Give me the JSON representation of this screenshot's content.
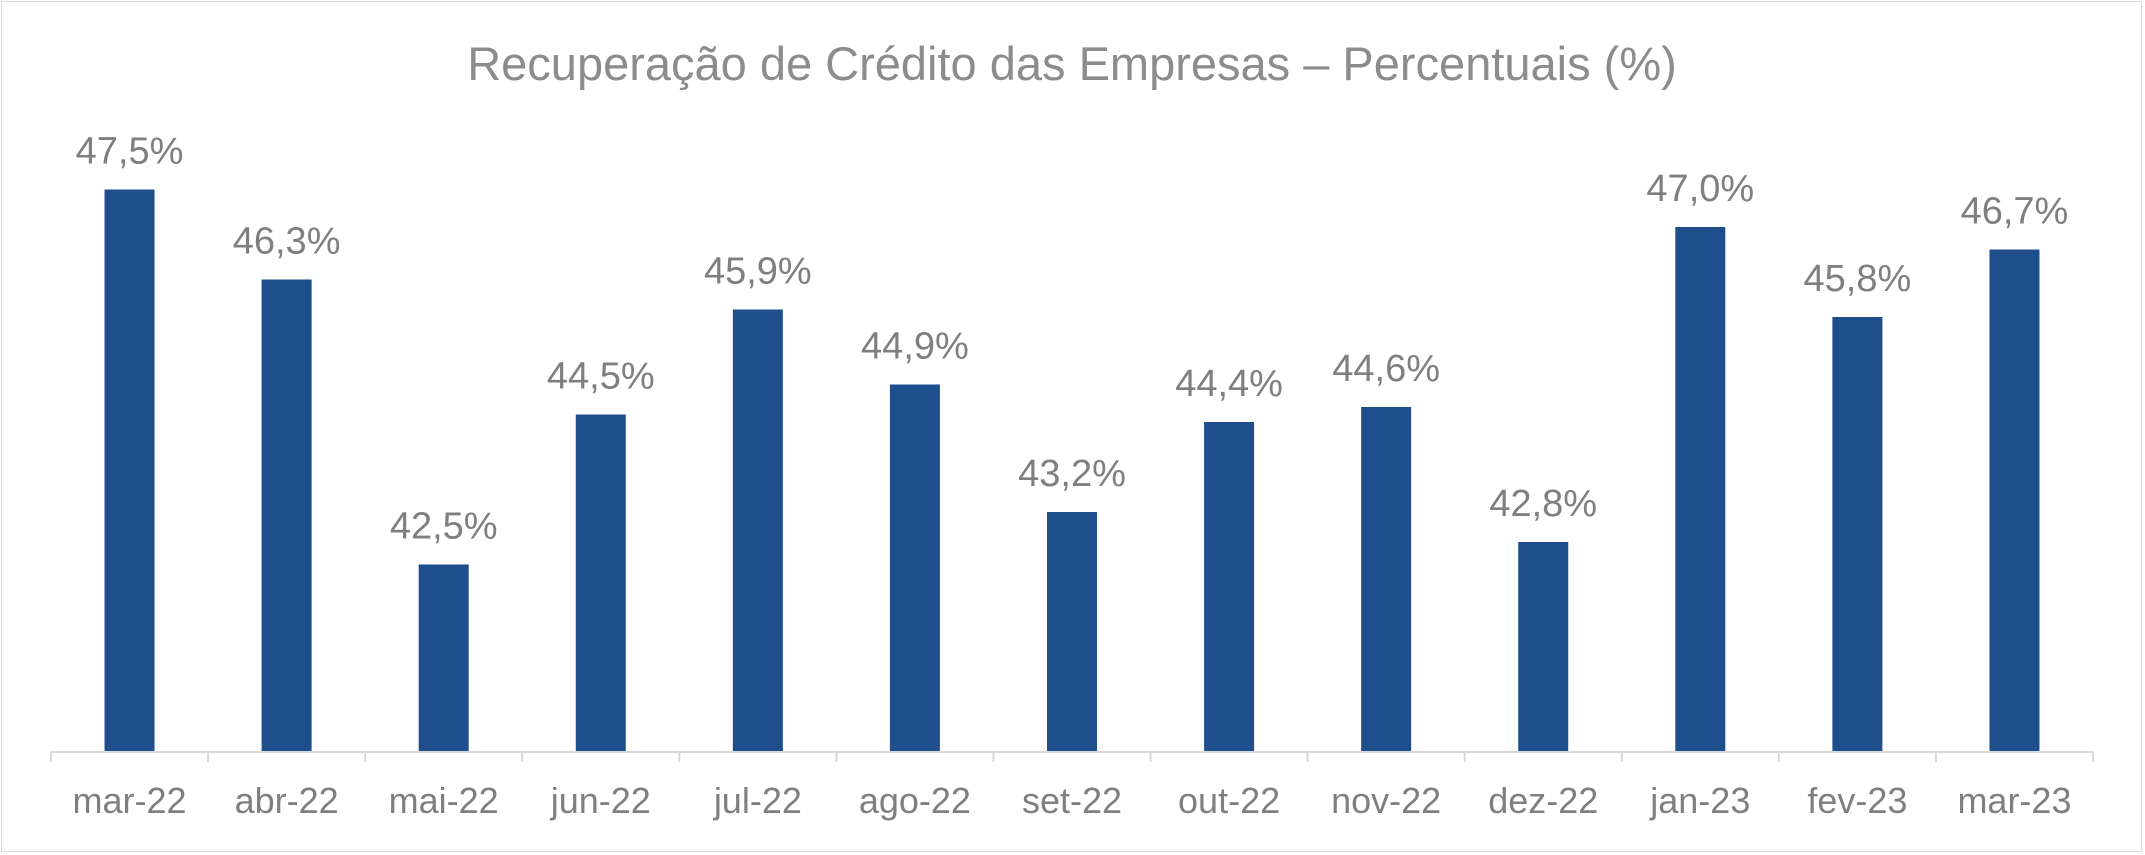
{
  "chart_data": {
    "type": "bar",
    "title": "Recuperação de Crédito das Empresas – Percentuais (%)",
    "xlabel": "",
    "ylabel": "",
    "categories": [
      "mar-22",
      "abr-22",
      "mai-22",
      "jun-22",
      "jul-22",
      "ago-22",
      "set-22",
      "out-22",
      "nov-22",
      "dez-22",
      "jan-23",
      "fev-23",
      "mar-23"
    ],
    "values": [
      47.5,
      46.3,
      42.5,
      44.5,
      45.9,
      44.9,
      43.2,
      44.4,
      44.6,
      42.8,
      47.0,
      45.8,
      46.7
    ],
    "data_labels": [
      "47,5%",
      "46,3%",
      "42,5%",
      "44,5%",
      "45,9%",
      "44,9%",
      "43,2%",
      "44,4%",
      "44,6%",
      "42,8%",
      "47,0%",
      "45,8%",
      "46,7%"
    ],
    "ylim": [
      40,
      48
    ],
    "grid": false,
    "legend": "none",
    "bar_color": "#1f4e8c",
    "text_color": "#7f7f7f",
    "axis_color": "#d9d9d9"
  }
}
